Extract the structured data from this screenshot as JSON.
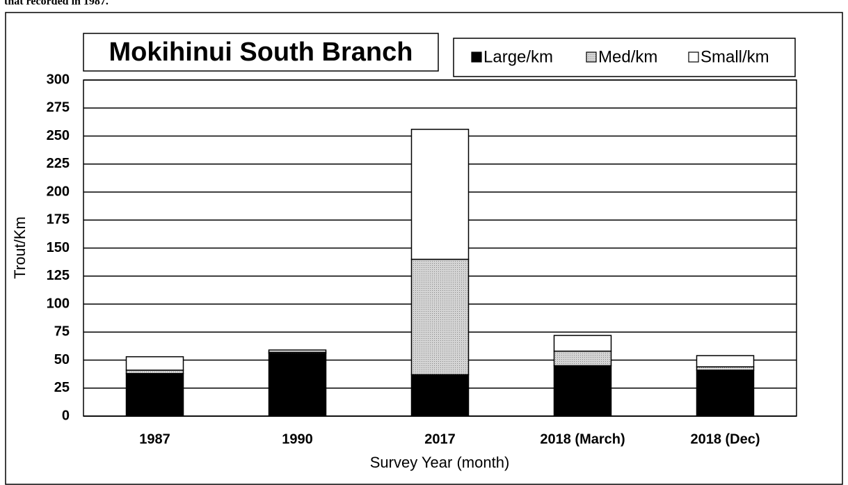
{
  "caption": "that recorded in 1987.",
  "chart_data": {
    "type": "bar",
    "stacked": true,
    "title": "Mokihinui South Branch",
    "x_label": "Survey Year (month)",
    "y_label": "Trout/Km",
    "categories": [
      "1987",
      "1990",
      "2017",
      "2018 (March)",
      "2018 (Dec)"
    ],
    "series": [
      {
        "name": "Large/km",
        "color": "#000000",
        "values": [
          38,
          56,
          37,
          45,
          41
        ]
      },
      {
        "name": "Med/km",
        "color": "#d4d4d4",
        "values": [
          3,
          1,
          103,
          13,
          3
        ]
      },
      {
        "name": "Small/km",
        "color": "#ffffff",
        "values": [
          12,
          2,
          116,
          14,
          10
        ]
      }
    ],
    "ylim": [
      0,
      300
    ],
    "yticks": [
      0,
      25,
      50,
      75,
      100,
      125,
      150,
      175,
      200,
      225,
      250,
      275,
      300
    ],
    "grid": true
  }
}
